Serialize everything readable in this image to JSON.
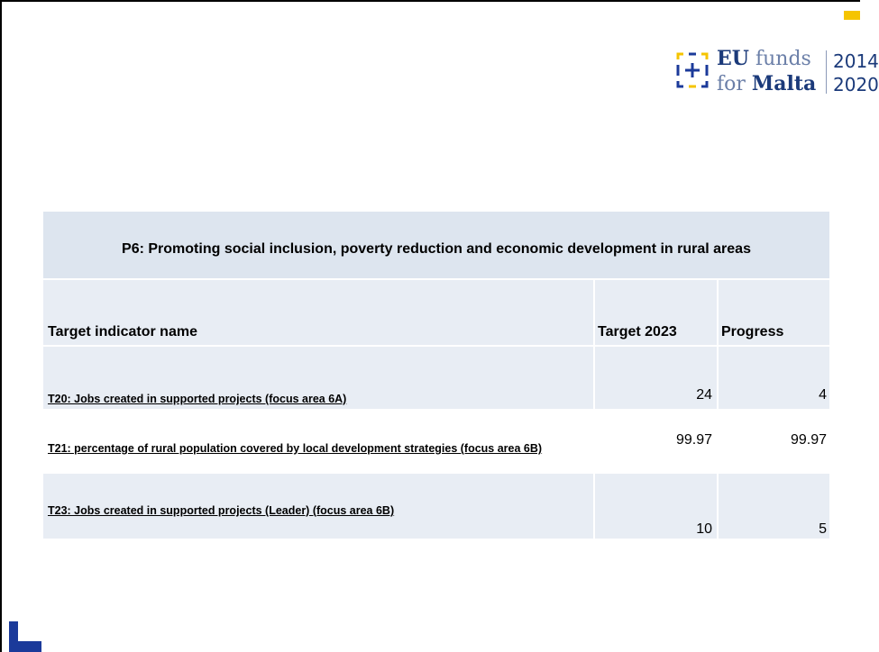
{
  "logo": {
    "eu": "EU",
    "funds": "funds",
    "for": "for",
    "malta": "Malta",
    "year_start": "2014",
    "year_end": "2020"
  },
  "table": {
    "title": "P6: Promoting social inclusion, poverty reduction and economic development in rural areas",
    "headers": [
      "Target indicator name",
      "Target 2023",
      "Progress"
    ],
    "rows": [
      [
        "T20: Jobs created in supported projects (focus area 6A)",
        24,
        4
      ],
      [
        "T21: percentage of rural population covered by local development strategies (focus area 6B)",
        99.97,
        99.97
      ],
      [
        "T23: Jobs created in supported projects (Leader) (focus area 6B)",
        10,
        5
      ]
    ]
  }
}
